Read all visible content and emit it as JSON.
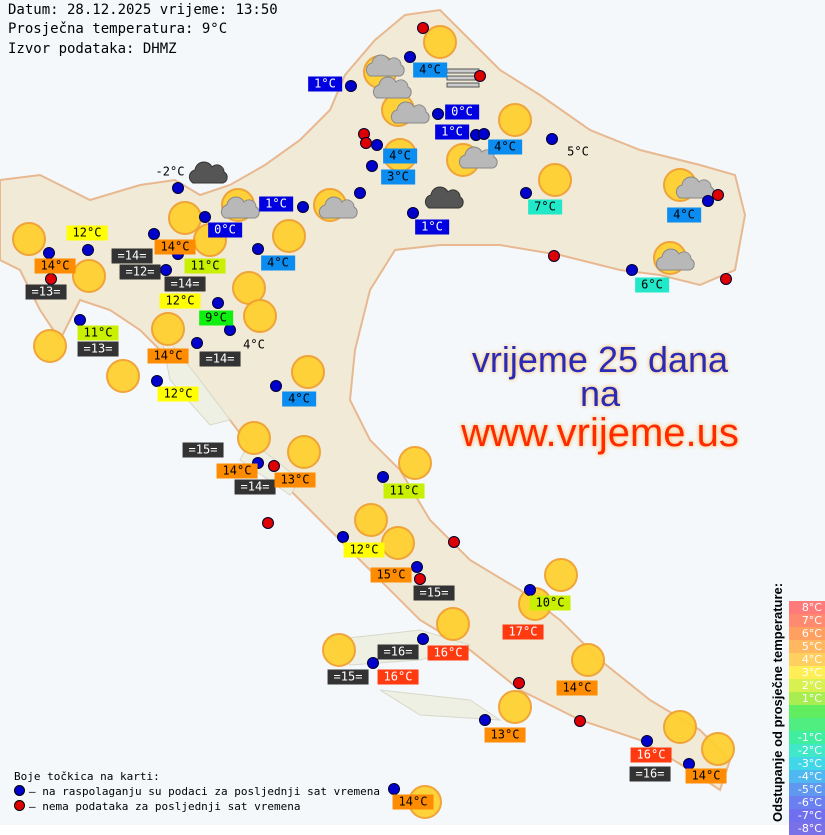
{
  "header": {
    "line1": "Datum: 28.12.2025 vrijeme: 13:50",
    "line2": "Prosječna temperatura: 9°C",
    "line3": "Izvor podataka: DHMZ"
  },
  "promo": {
    "line1": "vrijeme 25 dana",
    "line2": "na",
    "line3": "www.vrijeme.us",
    "color1": "#2a2ab8",
    "color3": "#ff2a00"
  },
  "colors": {
    "blue": "#0000e0",
    "lightblue": "#0a8cf0",
    "cyan": "#20e8c8",
    "yellow": "#ffff00",
    "yellowgreen": "#c8f000",
    "green": "#10f010",
    "orange": "#ff8c00",
    "red": "#ff3a10",
    "gray": "#333333",
    "dot_available": "#0000cc",
    "dot_missing": "#dd0000"
  },
  "labels": [
    {
      "text": "1°C",
      "cat": "blue"
    },
    {
      "text": "4°C",
      "cat": "lightblue"
    },
    {
      "text": "0°C",
      "cat": "blue"
    },
    {
      "text": "1°C",
      "cat": "blue"
    },
    {
      "text": "4°C",
      "cat": "lightblue"
    },
    {
      "text": "3°C",
      "cat": "lightblue"
    },
    {
      "text": "4°C",
      "cat": "lightblue"
    },
    {
      "text": "5°C",
      "cat": "plain"
    },
    {
      "text": "7°C",
      "cat": "cyan"
    },
    {
      "text": "1°C",
      "cat": "blue"
    },
    {
      "text": "1°C",
      "cat": "blue"
    },
    {
      "text": "0°C",
      "cat": "blue"
    },
    {
      "text": "-2°C",
      "cat": "plain"
    },
    {
      "text": "12°C",
      "cat": "yellow"
    },
    {
      "text": "14°C",
      "cat": "orange"
    },
    {
      "text": "14°C",
      "cat": "orange"
    },
    {
      "text": "=14=",
      "cat": "gray"
    },
    {
      "text": "=12=",
      "cat": "gray"
    },
    {
      "text": "11°C",
      "cat": "yellowgreen"
    },
    {
      "text": "12°C",
      "cat": "yellow"
    },
    {
      "text": "=14=",
      "cat": "gray"
    },
    {
      "text": "4°C",
      "cat": "lightblue"
    },
    {
      "text": "=13=",
      "cat": "gray"
    },
    {
      "text": "9°C",
      "cat": "green"
    },
    {
      "text": "11°C",
      "cat": "yellowgreen"
    },
    {
      "text": "=13=",
      "cat": "gray"
    },
    {
      "text": "4°C",
      "cat": "plain"
    },
    {
      "text": "14°C",
      "cat": "orange"
    },
    {
      "text": "=14=",
      "cat": "gray"
    },
    {
      "text": "12°C",
      "cat": "yellow"
    },
    {
      "text": "4°C",
      "cat": "lightblue"
    },
    {
      "text": "=15=",
      "cat": "gray"
    },
    {
      "text": "14°C",
      "cat": "orange"
    },
    {
      "text": "=14=",
      "cat": "gray"
    },
    {
      "text": "13°C",
      "cat": "orange"
    },
    {
      "text": "11°C",
      "cat": "yellowgreen"
    },
    {
      "text": "12°C",
      "cat": "yellow"
    },
    {
      "text": "15°C",
      "cat": "orange"
    },
    {
      "text": "=15=",
      "cat": "gray"
    },
    {
      "text": "10°C",
      "cat": "yellowgreen"
    },
    {
      "text": "17°C",
      "cat": "red"
    },
    {
      "text": "=16=",
      "cat": "gray"
    },
    {
      "text": "16°C",
      "cat": "red"
    },
    {
      "text": "=15=",
      "cat": "gray"
    },
    {
      "text": "16°C",
      "cat": "red"
    },
    {
      "text": "14°C",
      "cat": "orange"
    },
    {
      "text": "13°C",
      "cat": "orange"
    },
    {
      "text": "16°C",
      "cat": "red"
    },
    {
      "text": "=16=",
      "cat": "gray"
    },
    {
      "text": "14°C",
      "cat": "orange"
    },
    {
      "text": "14°C",
      "cat": "orange"
    },
    {
      "text": "4°C",
      "cat": "lightblue"
    },
    {
      "text": "6°C",
      "cat": "cyan"
    }
  ],
  "legend": {
    "title": "Boje točkica na karti:",
    "available": "– na raspolaganju su podaci za posljednji sat vremena",
    "missing": "– nema podataka za posljednji sat vremena"
  },
  "scale": {
    "title": "Odstupanje od prosječne temperature:",
    "items": [
      {
        "label": "8°C",
        "color": "#ff7a7a"
      },
      {
        "label": "7°C",
        "color": "#ff8a70"
      },
      {
        "label": "6°C",
        "color": "#ffa060"
      },
      {
        "label": "5°C",
        "color": "#ffb860"
      },
      {
        "label": "4°C",
        "color": "#ffd060"
      },
      {
        "label": "3°C",
        "color": "#ffee55"
      },
      {
        "label": "2°C",
        "color": "#d8f050"
      },
      {
        "label": "1°C",
        "color": "#a8ee50"
      },
      {
        "label": "",
        "color": "#60ee60"
      },
      {
        "label": "",
        "color": "#50ee80"
      },
      {
        "label": "-1°C",
        "color": "#40eea0"
      },
      {
        "label": "-2°C",
        "color": "#40e8c8"
      },
      {
        "label": "-3°C",
        "color": "#40d8e8"
      },
      {
        "label": "-4°C",
        "color": "#50b8f0"
      },
      {
        "label": "-5°C",
        "color": "#6098f0"
      },
      {
        "label": "-6°C",
        "color": "#6a80f0"
      },
      {
        "label": "-7°C",
        "color": "#7070ee"
      },
      {
        "label": "-8°C",
        "color": "#7a70e8"
      }
    ]
  }
}
